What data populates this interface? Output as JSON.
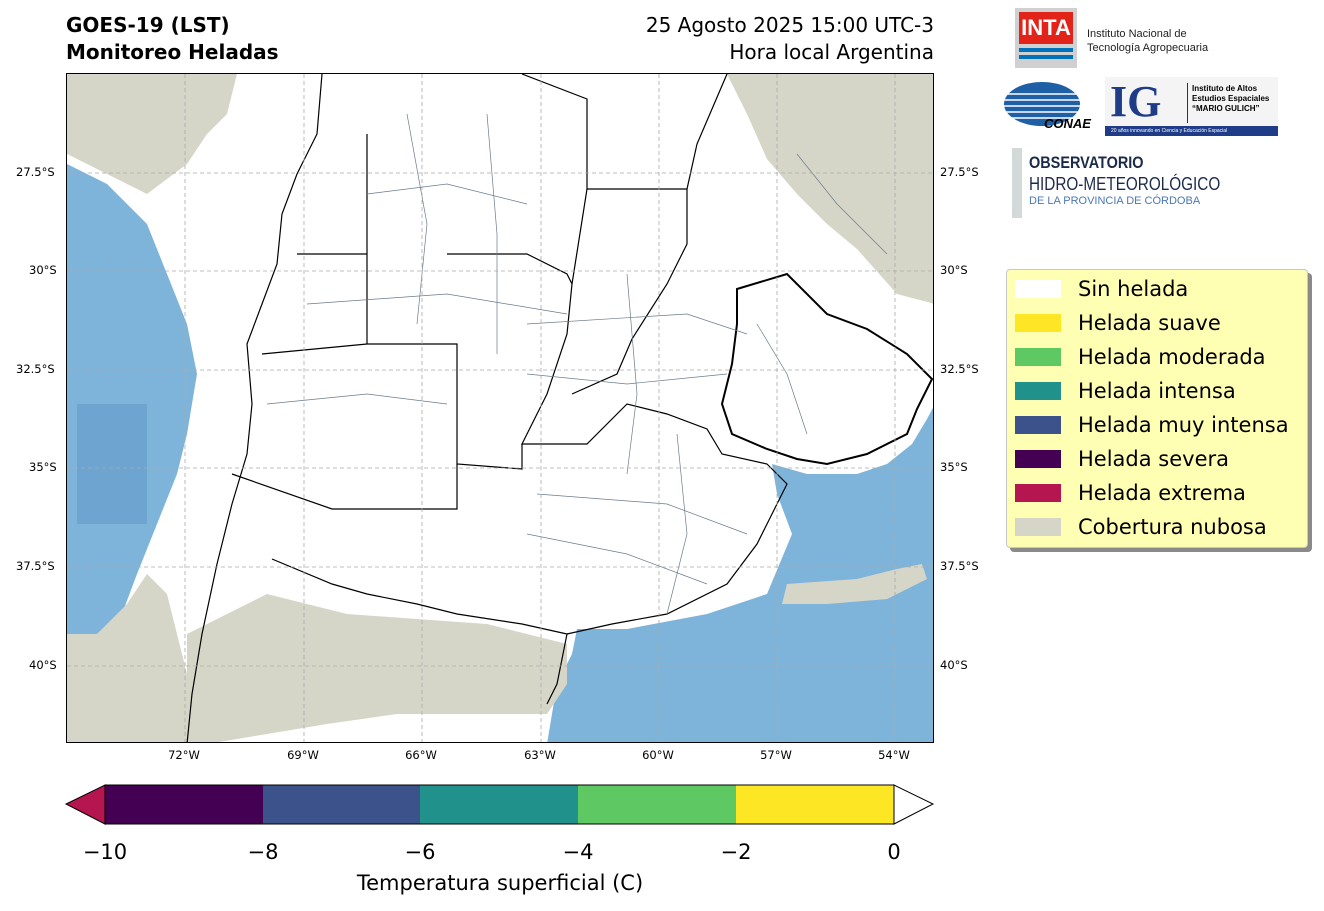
{
  "header": {
    "title_line1": "GOES-19 (LST)",
    "title_line2": "Monitoreo Heladas",
    "date_line1": "25 Agosto 2025 15:00 UTC-3",
    "date_line2": "Hora local Argentina"
  },
  "map": {
    "lat_labels": [
      "27.5°S",
      "30°S",
      "32.5°S",
      "35°S",
      "37.5°S",
      "40°S"
    ],
    "lon_labels": [
      "72°W",
      "69°W",
      "66°W",
      "63°W",
      "60°W",
      "57°W",
      "54°W"
    ],
    "colors": {
      "cloud": "#d6d6c8",
      "sea": "#7fb4da",
      "sea_dark": "#6ea5d0",
      "land": "#ffffff",
      "boundary": "#6b7b8c"
    }
  },
  "legend": {
    "items": [
      {
        "label": "Sin helada",
        "color": "#ffffff"
      },
      {
        "label": "Helada suave",
        "color": "#fde725"
      },
      {
        "label": "Helada moderada",
        "color": "#5ec962"
      },
      {
        "label": "Helada intensa",
        "color": "#21918c"
      },
      {
        "label": "Helada muy intensa",
        "color": "#3b528b"
      },
      {
        "label": "Helada severa",
        "color": "#440154"
      },
      {
        "label": "Helada extrema",
        "color": "#b5164f"
      },
      {
        "label": "Cobertura nubosa",
        "color": "#d6d6c8"
      }
    ]
  },
  "logos": {
    "inta_mark": "INTA",
    "inta_line1": "Instituto Nacional de",
    "inta_line2": "Tecnología Agropecuaria",
    "conae": "CONAE",
    "ig_mark": "IG",
    "ig_line1": "Instituto de Altos",
    "ig_line2": "Estudios Espaciales",
    "ig_line3": "“MARIO GULICH”",
    "ig_tagline": "20 años innovando en Ciencia y Educación Espacial",
    "obs_line1": "OBSERVATORIO",
    "obs_line2": "HIDRO-METEOROLÓGICO",
    "obs_line3": "DE LA PROVINCIA DE CÓRDOBA"
  },
  "colorbar": {
    "title": "Temperatura superficial (C)",
    "ticks": [
      "−10",
      "−8",
      "−6",
      "−4",
      "−2",
      "0"
    ],
    "segments": [
      "#440154",
      "#3b528b",
      "#21918c",
      "#5ec962",
      "#fde725"
    ],
    "under_color": "#b5164f",
    "over_color": "#ffffff"
  }
}
